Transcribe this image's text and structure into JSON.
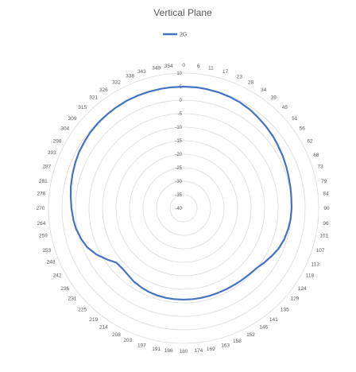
{
  "chart_data": {
    "type": "line",
    "subtype": "radar",
    "title": "Vertical Plane",
    "legend": {
      "position": "top"
    },
    "angle_labels": [
      "0",
      "6",
      "11",
      "17",
      "23",
      "28",
      "34",
      "39",
      "45",
      "51",
      "56",
      "62",
      "68",
      "73",
      "79",
      "84",
      "90",
      "96",
      "101",
      "107",
      "113",
      "118",
      "124",
      "129",
      "135",
      "141",
      "146",
      "152",
      "158",
      "163",
      "169",
      "174",
      "180",
      "186",
      "191",
      "197",
      "203",
      "208",
      "214",
      "219",
      "225",
      "231",
      "236",
      "242",
      "248",
      "253",
      "259",
      "264",
      "270",
      "276",
      "281",
      "287",
      "293",
      "298",
      "304",
      "309",
      "315",
      "321",
      "326",
      "332",
      "338",
      "343",
      "349",
      "354"
    ],
    "radial_ticks": [
      "10",
      "5",
      "0",
      "-5",
      "-10",
      "-15",
      "-20",
      "-25",
      "-30",
      "-35",
      "-40"
    ],
    "rlim": [
      -40,
      10
    ],
    "grid": true,
    "series": [
      {
        "name": "2G",
        "color": "#4472C4",
        "angles": [
          0,
          6,
          11,
          17,
          23,
          28,
          34,
          39,
          45,
          51,
          56,
          62,
          68,
          73,
          79,
          84,
          90,
          96,
          101,
          107,
          113,
          118,
          124,
          129,
          135,
          141,
          146,
          152,
          158,
          163,
          169,
          174,
          180,
          186,
          191,
          197,
          203,
          208,
          214,
          219,
          225,
          231,
          236,
          242,
          248,
          253,
          259,
          264,
          270,
          276,
          281,
          287,
          293,
          298,
          304,
          309,
          315,
          321,
          326,
          332,
          338,
          343,
          349,
          354
        ],
        "values": [
          5.0,
          5.0,
          4.9,
          4.8,
          4.6,
          4.4,
          4.0,
          3.5,
          3.0,
          2.5,
          2.0,
          1.5,
          1.0,
          0.6,
          0.3,
          0.1,
          0.0,
          -0.2,
          -0.5,
          -1.0,
          -1.8,
          -2.8,
          -4.0,
          -5.0,
          -5.5,
          -5.8,
          -6.0,
          -6.1,
          -6.2,
          -6.2,
          -6.2,
          -6.2,
          -6.2,
          -6.2,
          -6.2,
          -6.3,
          -6.5,
          -6.8,
          -7.2,
          -7.8,
          -8.2,
          -8.0,
          -6.0,
          -3.5,
          -1.5,
          -0.5,
          0.5,
          1.0,
          1.5,
          2.0,
          2.5,
          3.0,
          3.5,
          3.9,
          4.2,
          4.5,
          4.7,
          4.8,
          4.9,
          5.0,
          5.0,
          5.0,
          5.0,
          5.0
        ]
      }
    ]
  }
}
